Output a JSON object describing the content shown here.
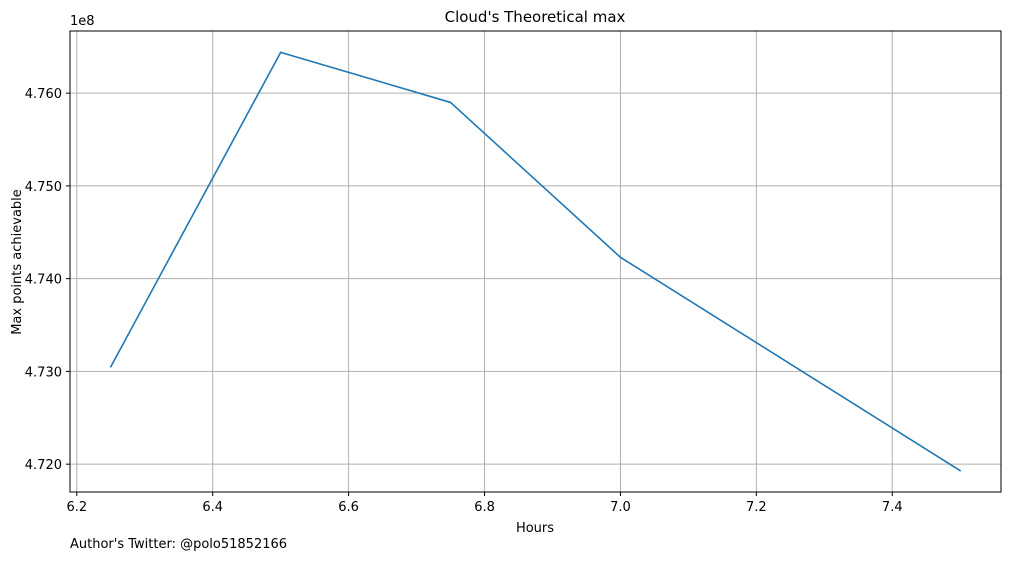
{
  "chart_data": {
    "type": "line",
    "title": "Cloud's Theoretical max",
    "xlabel": "Hours",
    "ylabel": "Max points achievable",
    "y_offset_label": "1e8",
    "xlim": [
      6.19,
      7.56
    ],
    "ylim": [
      4.717,
      4.7667
    ],
    "x_ticks": [
      6.2,
      6.4,
      6.6,
      6.8,
      7.0,
      7.2,
      7.4
    ],
    "x_tick_labels": [
      "6.2",
      "6.4",
      "6.6",
      "6.8",
      "7.0",
      "7.2",
      "7.4"
    ],
    "y_ticks": [
      4.72,
      4.73,
      4.74,
      4.75,
      4.76
    ],
    "y_tick_labels": [
      "4.720",
      "4.730",
      "4.740",
      "4.750",
      "4.760"
    ],
    "grid": true,
    "series": [
      {
        "color": "#1f77b4",
        "x": [
          6.25,
          6.5,
          6.75,
          7.0,
          7.5
        ],
        "y": [
          4.7305,
          4.7644,
          4.759,
          4.7423,
          4.7193
        ]
      }
    ]
  },
  "footer": {
    "note": "Author's Twitter: @polo51852166"
  },
  "colors": {
    "grid": "#b0b0b0",
    "axis": "#000000",
    "line": "#1f77b4"
  }
}
